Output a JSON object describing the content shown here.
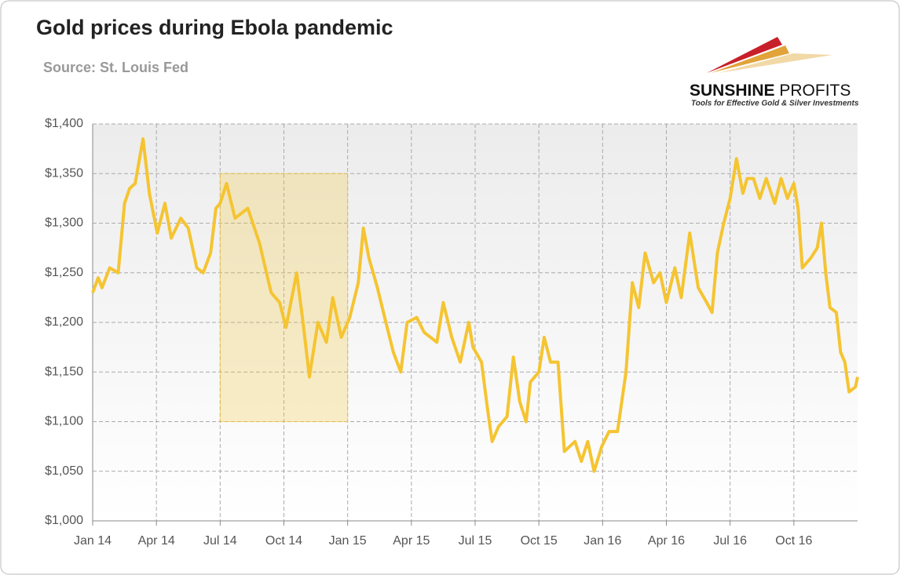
{
  "chart_data": {
    "type": "line",
    "title": "Gold prices during Ebola pandemic",
    "subtitle": "Source: St. Louis Fed",
    "logo": {
      "name_bold": "SUNSHINE",
      "name_light": "PROFITS",
      "tagline": "Tools for Effective Gold & Silver Investments"
    },
    "x": [
      0,
      0.26,
      0.44,
      0.8,
      1.2,
      1.5,
      1.74,
      2,
      2.37,
      2.67,
      3.04,
      3.4,
      3.7,
      4.15,
      4.5,
      4.9,
      5.2,
      5.55,
      5.8,
      6,
      6.3,
      6.7,
      7.3,
      7.85,
      8.4,
      8.8,
      9.1,
      9.6,
      9.9,
      10.2,
      10.6,
      11,
      11.3,
      11.7,
      12.1,
      12.5,
      12.74,
      13,
      13.4,
      13.8,
      14.15,
      14.5,
      14.8,
      15.25,
      15.6,
      16.2,
      16.5,
      16.9,
      17.3,
      17.7,
      17.9,
      18.3,
      18.6,
      18.8,
      19.1,
      19.5,
      19.8,
      20.1,
      20.4,
      20.6,
      21,
      21.25,
      21.55,
      21.9,
      22.2,
      22.7,
      23,
      23.3,
      23.6,
      23.96,
      24.3,
      24.7,
      25.1,
      25.4,
      25.7,
      26,
      26.4,
      26.7,
      27,
      27.4,
      27.7,
      28.1,
      28.5,
      28.9,
      29.15,
      29.4,
      29.7,
      30,
      30.3,
      30.6,
      30.8,
      31.1,
      31.4,
      31.7,
      32.1,
      32.4,
      32.7,
      33,
      33.2,
      33.4,
      33.8,
      34.1,
      34.3,
      34.5,
      34.7,
      35,
      35.2,
      35.4,
      35.6,
      35.9,
      36
    ],
    "series": [
      {
        "name": "Gold price",
        "color": "#f5c431",
        "values": [
          1230,
          1245,
          1235,
          1255,
          1250,
          1320,
          1335,
          1340,
          1385,
          1330,
          1290,
          1320,
          1285,
          1305,
          1295,
          1255,
          1250,
          1270,
          1315,
          1320,
          1340,
          1305,
          1315,
          1280,
          1230,
          1220,
          1195,
          1250,
          1200,
          1145,
          1200,
          1180,
          1225,
          1185,
          1205,
          1240,
          1295,
          1265,
          1235,
          1200,
          1170,
          1150,
          1200,
          1205,
          1190,
          1180,
          1220,
          1185,
          1160,
          1200,
          1175,
          1160,
          1110,
          1080,
          1095,
          1105,
          1165,
          1120,
          1100,
          1140,
          1150,
          1185,
          1160,
          1160,
          1070,
          1080,
          1060,
          1080,
          1050,
          1075,
          1090,
          1090,
          1150,
          1240,
          1215,
          1270,
          1240,
          1250,
          1220,
          1255,
          1225,
          1290,
          1235,
          1220,
          1210,
          1270,
          1300,
          1325,
          1365,
          1330,
          1345,
          1345,
          1325,
          1345,
          1320,
          1345,
          1325,
          1340,
          1315,
          1255,
          1265,
          1275,
          1300,
          1250,
          1215,
          1210,
          1170,
          1160,
          1130,
          1135,
          1145
        ]
      }
    ],
    "highlight": {
      "x": [
        6,
        12
      ],
      "y": [
        1100,
        1350
      ],
      "color": "#f5c431"
    },
    "xlim": [
      0,
      36
    ],
    "xticks": [
      {
        "value": 0,
        "label": "Jan 14"
      },
      {
        "value": 3,
        "label": "Apr 14"
      },
      {
        "value": 6,
        "label": "Jul 14"
      },
      {
        "value": 9,
        "label": "Oct 14"
      },
      {
        "value": 12,
        "label": "Jan 15"
      },
      {
        "value": 15,
        "label": "Apr 15"
      },
      {
        "value": 18,
        "label": "Jul 15"
      },
      {
        "value": 21,
        "label": "Oct 15"
      },
      {
        "value": 24,
        "label": "Jan 16"
      },
      {
        "value": 27,
        "label": "Apr 16"
      },
      {
        "value": 30,
        "label": "Jul 16"
      },
      {
        "value": 33,
        "label": "Oct 16"
      }
    ],
    "ylim": [
      1000,
      1400
    ],
    "yticks": [
      {
        "value": 1000,
        "label": "$1,000"
      },
      {
        "value": 1050,
        "label": "$1,050"
      },
      {
        "value": 1100,
        "label": "$1,100"
      },
      {
        "value": 1150,
        "label": "$1,150"
      },
      {
        "value": 1200,
        "label": "$1,200"
      },
      {
        "value": 1250,
        "label": "$1,250"
      },
      {
        "value": 1300,
        "label": "$1,300"
      },
      {
        "value": 1350,
        "label": "$1,350"
      },
      {
        "value": 1400,
        "label": "$1,400"
      }
    ],
    "grid": true
  }
}
